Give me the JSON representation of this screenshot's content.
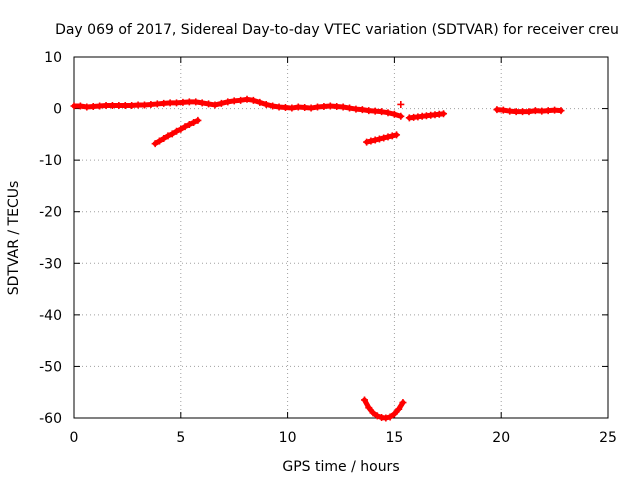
{
  "chart_data": {
    "type": "scatter",
    "title": "Day 069 of 2017, Sidereal Day-to-day VTEC variation (SDTVAR) for receiver creu",
    "xlabel": "GPS time / hours",
    "ylabel": "SDTVAR / TECUs",
    "xlim": [
      0,
      25
    ],
    "ylim": [
      -60,
      10
    ],
    "xticks": [
      "0",
      "5",
      "10",
      "15",
      "20",
      "25"
    ],
    "yticks": [
      "10",
      "0",
      "-10",
      "-20",
      "-30",
      "-40",
      "-50",
      "-60"
    ],
    "grid": true,
    "legend": "none",
    "marker": "+",
    "color": "#ff0000",
    "series": [
      {
        "x": [
          0.0,
          0.3,
          0.6,
          0.9,
          1.2,
          1.5,
          1.8,
          2.1,
          2.4,
          2.7,
          3.0,
          3.3,
          3.6,
          3.9,
          4.2,
          4.5,
          4.8,
          5.1,
          5.4,
          5.7,
          6.0,
          6.3,
          6.6,
          6.9,
          7.2,
          7.5,
          7.8,
          8.1,
          8.4,
          8.7,
          9.0,
          9.3,
          9.6,
          9.9,
          10.2,
          10.5,
          10.8,
          11.1,
          11.4,
          11.7,
          12.0,
          12.3,
          12.6,
          12.9,
          13.2,
          13.5,
          13.8,
          14.1,
          14.4,
          14.7,
          15.0,
          15.3
        ],
        "y": [
          0.5,
          0.5,
          0.3,
          0.4,
          0.5,
          0.6,
          0.6,
          0.6,
          0.6,
          0.6,
          0.7,
          0.7,
          0.8,
          0.9,
          1.0,
          1.1,
          1.1,
          1.2,
          1.3,
          1.3,
          1.1,
          0.9,
          0.7,
          1.0,
          1.3,
          1.5,
          1.6,
          1.8,
          1.6,
          1.2,
          0.8,
          0.5,
          0.3,
          0.2,
          0.1,
          0.3,
          0.2,
          0.1,
          0.3,
          0.4,
          0.5,
          0.4,
          0.3,
          0.1,
          -0.1,
          -0.2,
          -0.4,
          -0.5,
          -0.6,
          -0.8,
          -1.1,
          -1.5
        ]
      },
      {
        "x": [
          15.3
        ],
        "y": [
          0.8
        ]
      },
      {
        "x": [
          3.8,
          4.0,
          4.2,
          4.4,
          4.6,
          4.8,
          5.0,
          5.2,
          5.4,
          5.6,
          5.8
        ],
        "y": [
          -6.8,
          -6.3,
          -5.8,
          -5.3,
          -4.9,
          -4.4,
          -4.0,
          -3.5,
          -3.1,
          -2.7,
          -2.3
        ]
      },
      {
        "x": [
          13.7,
          13.9,
          14.1,
          14.3,
          14.5,
          14.7,
          14.9,
          15.1
        ],
        "y": [
          -6.5,
          -6.3,
          -6.1,
          -5.9,
          -5.7,
          -5.5,
          -5.3,
          -5.1
        ]
      },
      {
        "x": [
          15.7,
          15.9,
          16.1,
          16.3,
          16.5,
          16.7,
          16.9,
          17.1,
          17.3
        ],
        "y": [
          -1.8,
          -1.7,
          -1.6,
          -1.5,
          -1.4,
          -1.3,
          -1.2,
          -1.1,
          -1.0
        ]
      },
      {
        "x": [
          19.8,
          20.1,
          20.4,
          20.7,
          21.0,
          21.3,
          21.6,
          21.9,
          22.2,
          22.5,
          22.8
        ],
        "y": [
          -0.2,
          -0.3,
          -0.5,
          -0.6,
          -0.6,
          -0.6,
          -0.4,
          -0.5,
          -0.4,
          -0.3,
          -0.4
        ]
      },
      {
        "x": [
          13.6,
          13.8,
          14.0,
          14.2,
          14.4,
          14.6,
          14.8,
          15.0,
          15.2,
          15.4
        ],
        "y": [
          -56.5,
          -58.0,
          -59.0,
          -59.6,
          -59.9,
          -60.0,
          -59.8,
          -59.2,
          -58.3,
          -57.0
        ]
      }
    ]
  }
}
